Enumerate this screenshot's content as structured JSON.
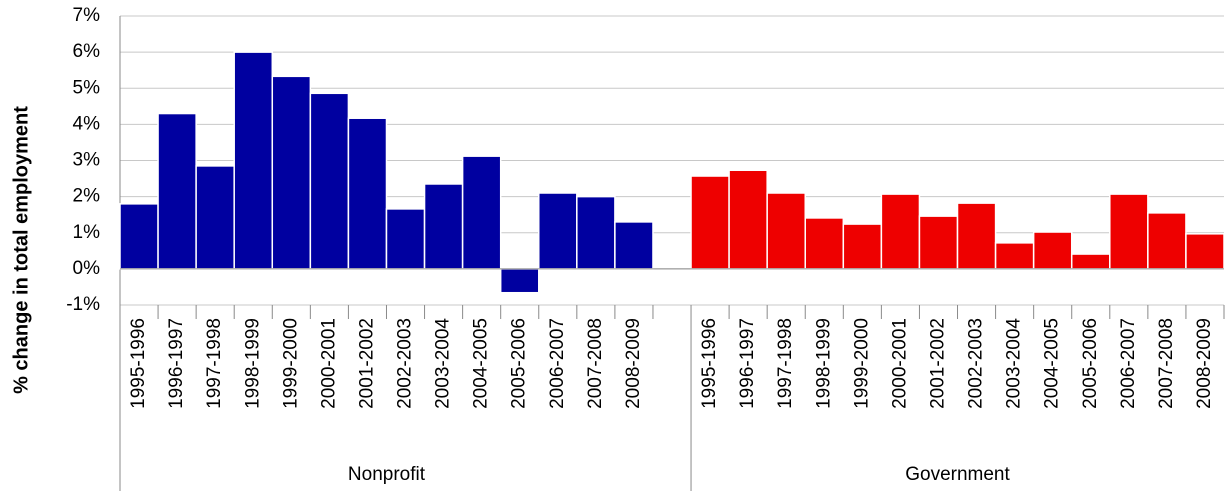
{
  "chart_data": {
    "type": "bar",
    "y_label": "% change in total employment",
    "ylim": [
      -1,
      7
    ],
    "yticks": [
      {
        "value": -1,
        "label": "-1%"
      },
      {
        "value": 0,
        "label": "0%"
      },
      {
        "value": 1,
        "label": "1%"
      },
      {
        "value": 2,
        "label": "2%"
      },
      {
        "value": 3,
        "label": "3%"
      },
      {
        "value": 4,
        "label": "4%"
      },
      {
        "value": 5,
        "label": "5%"
      },
      {
        "value": 6,
        "label": "6%"
      },
      {
        "value": 7,
        "label": "7%"
      }
    ],
    "grid": true,
    "groups": [
      {
        "name": "Nonprofit",
        "color": "#0000a0",
        "categories": [
          "1995-1996",
          "1996-1997",
          "1997-1998",
          "1998-1999",
          "1999-2000",
          "2000-2001",
          "2001-2002",
          "2002-2003",
          "2003-2004",
          "2004-2005",
          "2005-2006",
          "2006-2007",
          "2007-2008",
          "2008-2009"
        ],
        "values": [
          1.8,
          4.3,
          2.85,
          6.0,
          5.33,
          4.86,
          4.17,
          1.66,
          2.35,
          3.12,
          -0.66,
          2.1,
          2.0,
          1.3
        ]
      },
      {
        "name": "Government",
        "color": "#ee0000",
        "categories": [
          "1995-1996",
          "1996-1997",
          "1997-1998",
          "1998-1999",
          "1999-2000",
          "2000-2001",
          "2001-2002",
          "2002-2003",
          "2003-2004",
          "2004-2005",
          "2005-2006",
          "2006-2007",
          "2007-2008",
          "2008-2009"
        ],
        "values": [
          2.57,
          2.73,
          2.1,
          1.41,
          1.24,
          2.07,
          1.46,
          1.82,
          0.72,
          1.02,
          0.41,
          2.07,
          1.55,
          0.97
        ]
      }
    ]
  }
}
